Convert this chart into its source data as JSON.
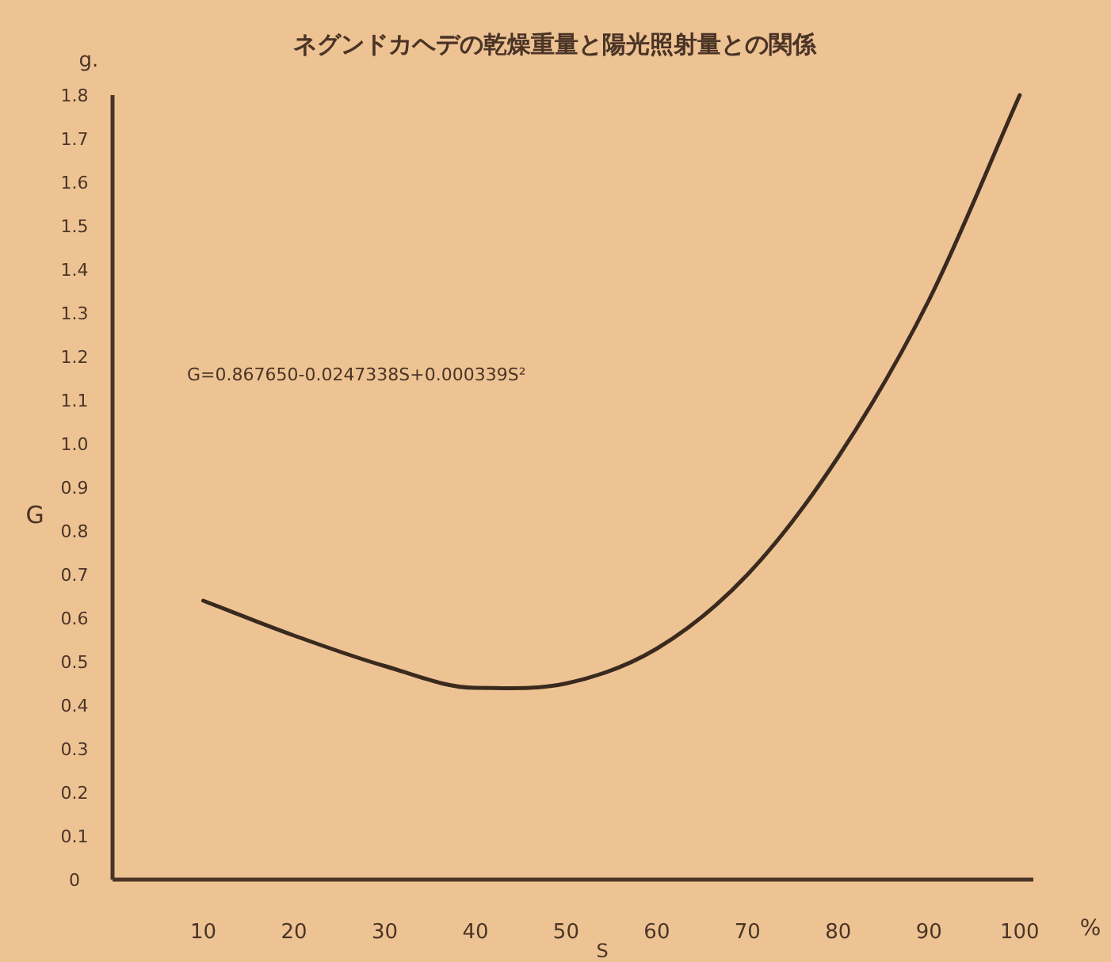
{
  "chart_data": {
    "type": "line",
    "title": "ネグンドカヘデの乾燥重量と陽光照射量との関係",
    "xlabel": "S",
    "ylabel": "G",
    "annotations": [
      "g.",
      "%",
      "G=0.867650-0.0247338S+0.000339S²"
    ],
    "x": [
      10,
      20,
      30,
      40,
      50,
      60,
      70,
      80,
      90,
      100
    ],
    "series": [
      {
        "color": "#3a2a1e",
        "values": [
          0.64,
          0.56,
          0.49,
          0.44,
          0.45,
          0.53,
          0.7,
          0.97,
          1.33,
          1.8
        ]
      }
    ],
    "xlim": [
      0,
      101.5
    ],
    "ylim": [
      0,
      1.8
    ],
    "xticks": [
      10,
      20,
      30,
      40,
      50,
      60,
      70,
      80,
      90,
      100
    ],
    "yticks": [
      0,
      0.1,
      0.2,
      0.3,
      0.4,
      0.5,
      0.6,
      0.7,
      0.8,
      0.9,
      {
        "value": 1,
        "label": "1.0"
      },
      1.1,
      1.2,
      1.3,
      1.4,
      1.5,
      1.6,
      1.7,
      1.8
    ],
    "grid": false,
    "marker": "none",
    "line_style": "solid"
  }
}
